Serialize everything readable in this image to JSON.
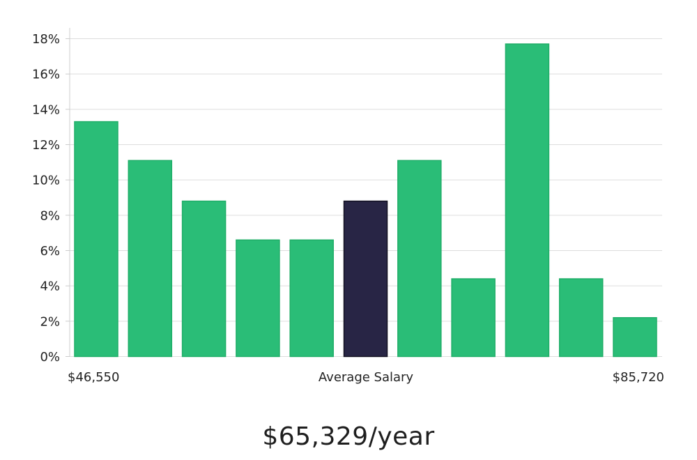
{
  "chart_data": {
    "type": "bar",
    "values": [
      13.3,
      11.1,
      8.8,
      6.6,
      6.6,
      8.8,
      11.1,
      4.4,
      17.7,
      4.4,
      2.2
    ],
    "highlight_index": 5,
    "ylim": [
      0,
      18
    ],
    "y_ticks": [
      "0%",
      "2%",
      "4%",
      "6%",
      "8%",
      "10%",
      "12%",
      "14%",
      "16%",
      "18%"
    ],
    "grid": true,
    "x_labels": {
      "left": "$46,550",
      "center": "Average Salary",
      "right": "$85,720"
    },
    "colors": {
      "bar": "#2abd77",
      "bar_stroke": "#1fae68",
      "highlight": "#282545",
      "highlight_stroke": "#121021",
      "grid": "#dddddd",
      "axis": "#cccccc"
    }
  },
  "headline": "$65,329/year"
}
